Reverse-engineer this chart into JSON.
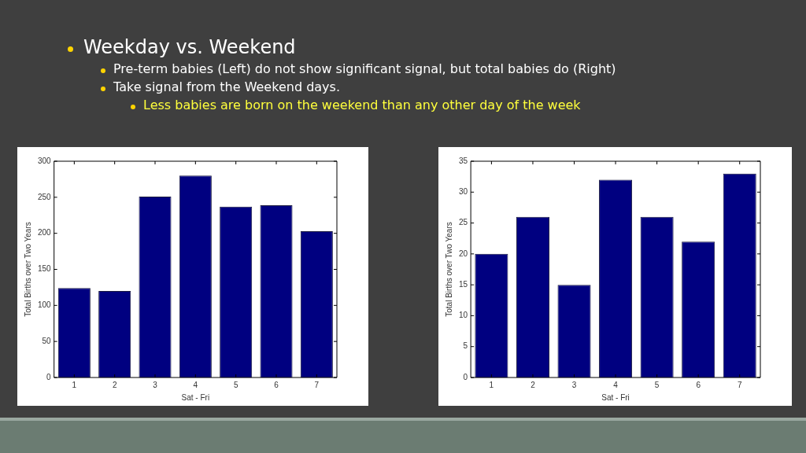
{
  "chart_data": [
    {
      "type": "bar",
      "annotations": [
        "Weekday vs. Weekend",
        "Pre-term babies  (Left) do not show significant signal, but total babies do (Right)",
        "Take signal from the Weekend days.",
        "Less babies are born on the weekend than any other day of the week"
      ],
      "xlabel": "Sat - Fri",
      "ylabel": "Total Births over Two Years",
      "categories": [
        "1",
        "2",
        "3",
        "4",
        "5",
        "6",
        "7"
      ],
      "values": [
        124,
        120,
        251,
        280,
        237,
        239,
        203
      ],
      "color": "#000080",
      "ylim": [
        0,
        300
      ],
      "yticks": [
        0,
        50,
        100,
        150,
        200,
        250,
        300
      ],
      "grid": false
    },
    {
      "type": "bar",
      "xlabel": "Sat - Fri",
      "ylabel": "Total Births over Two Years",
      "categories": [
        "1",
        "2",
        "3",
        "4",
        "5",
        "6",
        "7"
      ],
      "values": [
        20,
        26,
        15,
        32,
        26,
        22,
        33
      ],
      "color": "#000080",
      "ylim": [
        0,
        35
      ],
      "yticks": [
        0,
        5,
        10,
        15,
        20,
        25,
        30,
        35
      ],
      "grid": false
    }
  ]
}
